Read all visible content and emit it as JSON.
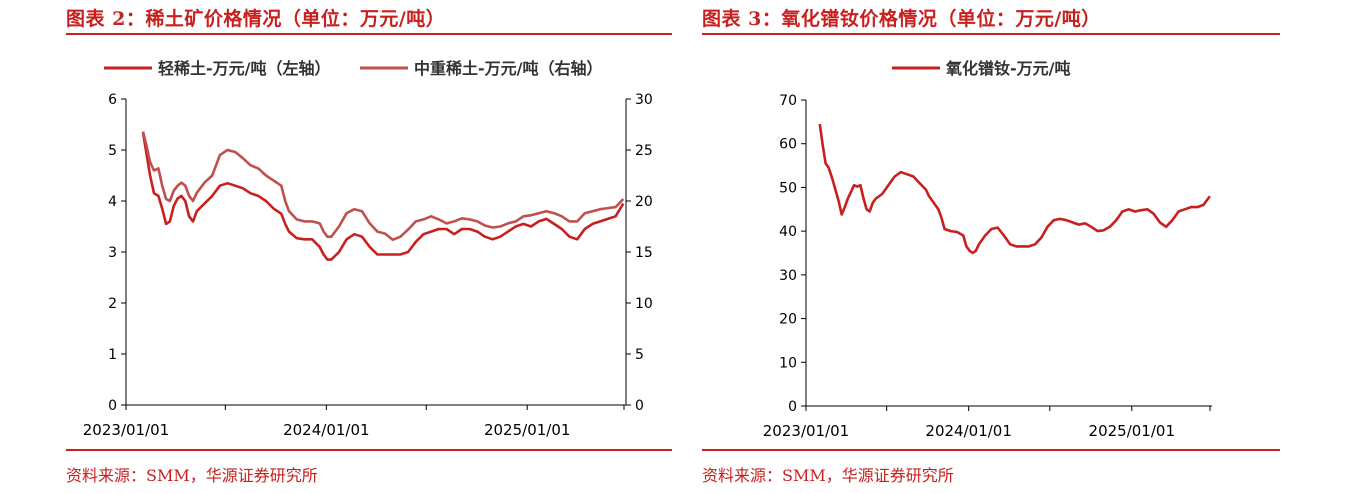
{
  "colors": {
    "accent": "#c8201e",
    "series_light": "#c8201e",
    "series_heavy": "#c0504d"
  },
  "left_panel": {
    "title": "图表 2：稀土矿价格情况（单位：万元/吨）",
    "source": "资料来源：SMM，华源证券研究所"
  },
  "right_panel": {
    "title": "图表 3：氧化镨钕价格情况（单位：万元/吨）",
    "source": "资料来源：SMM，华源证券研究所"
  },
  "chart_data": [
    {
      "type": "line",
      "title": "",
      "legend_position": "top",
      "x_ticks": [
        "2023/01/01",
        "2024/01/01",
        "2025/01/01"
      ],
      "x_range": [
        "2023/01/01",
        "2025/06/30"
      ],
      "y_left_range": [
        0,
        6
      ],
      "y_left_ticks": [
        "0",
        "1",
        "2",
        "3",
        "4",
        "5",
        "6"
      ],
      "y_right_range": [
        0,
        30
      ],
      "y_right_ticks": [
        "0",
        "5",
        "10",
        "15",
        "20",
        "25",
        "30"
      ],
      "grid": false,
      "series": [
        {
          "name": "轻稀土-万元/吨（左轴）",
          "axis": "left",
          "color": "#c8201e",
          "points": [
            [
              "2023-02-01",
              5.35
            ],
            [
              "2023-02-07",
              4.95
            ],
            [
              "2023-02-14",
              4.5
            ],
            [
              "2023-02-21",
              4.15
            ],
            [
              "2023-03-01",
              4.1
            ],
            [
              "2023-03-08",
              3.85
            ],
            [
              "2023-03-15",
              3.55
            ],
            [
              "2023-03-22",
              3.6
            ],
            [
              "2023-03-29",
              3.9
            ],
            [
              "2023-04-05",
              4.05
            ],
            [
              "2023-04-12",
              4.1
            ],
            [
              "2023-04-19",
              4.0
            ],
            [
              "2023-04-26",
              3.7
            ],
            [
              "2023-05-03",
              3.6
            ],
            [
              "2023-05-10",
              3.8
            ],
            [
              "2023-05-24",
              3.95
            ],
            [
              "2023-06-07",
              4.1
            ],
            [
              "2023-06-21",
              4.3
            ],
            [
              "2023-07-05",
              4.35
            ],
            [
              "2023-07-19",
              4.3
            ],
            [
              "2023-08-02",
              4.25
            ],
            [
              "2023-08-16",
              4.15
            ],
            [
              "2023-08-30",
              4.1
            ],
            [
              "2023-09-13",
              4.0
            ],
            [
              "2023-09-27",
              3.85
            ],
            [
              "2023-10-11",
              3.75
            ],
            [
              "2023-10-18",
              3.55
            ],
            [
              "2023-10-25",
              3.4
            ],
            [
              "2023-11-08",
              3.27
            ],
            [
              "2023-11-22",
              3.25
            ],
            [
              "2023-12-06",
              3.25
            ],
            [
              "2023-12-20",
              3.1
            ],
            [
              "2023-12-27",
              2.95
            ],
            [
              "2024-01-03",
              2.85
            ],
            [
              "2024-01-10",
              2.85
            ],
            [
              "2024-01-24",
              3.0
            ],
            [
              "2024-02-07",
              3.25
            ],
            [
              "2024-02-21",
              3.35
            ],
            [
              "2024-03-06",
              3.3
            ],
            [
              "2024-03-20",
              3.1
            ],
            [
              "2024-04-03",
              2.95
            ],
            [
              "2024-04-17",
              2.95
            ],
            [
              "2024-05-01",
              2.95
            ],
            [
              "2024-05-15",
              2.95
            ],
            [
              "2024-05-29",
              3.0
            ],
            [
              "2024-06-12",
              3.2
            ],
            [
              "2024-06-26",
              3.35
            ],
            [
              "2024-07-10",
              3.4
            ],
            [
              "2024-07-24",
              3.45
            ],
            [
              "2024-08-07",
              3.45
            ],
            [
              "2024-08-21",
              3.35
            ],
            [
              "2024-09-04",
              3.45
            ],
            [
              "2024-09-18",
              3.45
            ],
            [
              "2024-10-02",
              3.4
            ],
            [
              "2024-10-16",
              3.3
            ],
            [
              "2024-10-30",
              3.25
            ],
            [
              "2024-11-13",
              3.3
            ],
            [
              "2024-11-27",
              3.4
            ],
            [
              "2024-12-11",
              3.5
            ],
            [
              "2024-12-25",
              3.55
            ],
            [
              "2025-01-08",
              3.5
            ],
            [
              "2025-01-22",
              3.6
            ],
            [
              "2025-02-05",
              3.65
            ],
            [
              "2025-02-19",
              3.55
            ],
            [
              "2025-03-05",
              3.45
            ],
            [
              "2025-03-19",
              3.3
            ],
            [
              "2025-04-02",
              3.25
            ],
            [
              "2025-04-16",
              3.45
            ],
            [
              "2025-04-30",
              3.55
            ],
            [
              "2025-05-14",
              3.6
            ],
            [
              "2025-05-28",
              3.65
            ],
            [
              "2025-06-11",
              3.7
            ],
            [
              "2025-06-25",
              3.95
            ]
          ]
        },
        {
          "name": "中重稀土-万元/吨（右轴）",
          "axis": "right",
          "color": "#c0504d",
          "points": [
            [
              "2023-02-01",
              26.8
            ],
            [
              "2023-02-07",
              25.5
            ],
            [
              "2023-02-14",
              23.8
            ],
            [
              "2023-02-21",
              23.0
            ],
            [
              "2023-03-01",
              23.2
            ],
            [
              "2023-03-08",
              21.5
            ],
            [
              "2023-03-15",
              20.2
            ],
            [
              "2023-03-22",
              20.0
            ],
            [
              "2023-03-29",
              21.0
            ],
            [
              "2023-04-05",
              21.5
            ],
            [
              "2023-04-12",
              21.8
            ],
            [
              "2023-04-19",
              21.5
            ],
            [
              "2023-04-26",
              20.5
            ],
            [
              "2023-05-03",
              20.0
            ],
            [
              "2023-05-10",
              20.8
            ],
            [
              "2023-05-24",
              21.8
            ],
            [
              "2023-06-07",
              22.5
            ],
            [
              "2023-06-21",
              24.5
            ],
            [
              "2023-07-05",
              25.0
            ],
            [
              "2023-07-19",
              24.8
            ],
            [
              "2023-08-02",
              24.2
            ],
            [
              "2023-08-16",
              23.5
            ],
            [
              "2023-08-30",
              23.2
            ],
            [
              "2023-09-13",
              22.5
            ],
            [
              "2023-09-27",
              22.0
            ],
            [
              "2023-10-11",
              21.5
            ],
            [
              "2023-10-18",
              20.0
            ],
            [
              "2023-10-25",
              19.0
            ],
            [
              "2023-11-08",
              18.2
            ],
            [
              "2023-11-22",
              18.0
            ],
            [
              "2023-12-06",
              18.0
            ],
            [
              "2023-12-20",
              17.8
            ],
            [
              "2023-12-27",
              17.0
            ],
            [
              "2024-01-03",
              16.5
            ],
            [
              "2024-01-10",
              16.5
            ],
            [
              "2024-01-24",
              17.5
            ],
            [
              "2024-02-07",
              18.8
            ],
            [
              "2024-02-21",
              19.2
            ],
            [
              "2024-03-06",
              19.0
            ],
            [
              "2024-03-20",
              17.8
            ],
            [
              "2024-04-03",
              17.0
            ],
            [
              "2024-04-17",
              16.8
            ],
            [
              "2024-05-01",
              16.2
            ],
            [
              "2024-05-15",
              16.5
            ],
            [
              "2024-05-29",
              17.2
            ],
            [
              "2024-06-12",
              18.0
            ],
            [
              "2024-06-26",
              18.2
            ],
            [
              "2024-07-10",
              18.5
            ],
            [
              "2024-07-24",
              18.2
            ],
            [
              "2024-08-07",
              17.8
            ],
            [
              "2024-08-21",
              18.0
            ],
            [
              "2024-09-04",
              18.3
            ],
            [
              "2024-09-18",
              18.2
            ],
            [
              "2024-10-02",
              18.0
            ],
            [
              "2024-10-16",
              17.6
            ],
            [
              "2024-10-30",
              17.4
            ],
            [
              "2024-11-13",
              17.5
            ],
            [
              "2024-11-27",
              17.8
            ],
            [
              "2024-12-11",
              18.0
            ],
            [
              "2024-12-25",
              18.5
            ],
            [
              "2025-01-08",
              18.6
            ],
            [
              "2025-01-22",
              18.8
            ],
            [
              "2025-02-05",
              19.0
            ],
            [
              "2025-02-19",
              18.8
            ],
            [
              "2025-03-05",
              18.5
            ],
            [
              "2025-03-19",
              18.0
            ],
            [
              "2025-04-02",
              18.0
            ],
            [
              "2025-04-16",
              18.8
            ],
            [
              "2025-04-30",
              19.0
            ],
            [
              "2025-05-14",
              19.2
            ],
            [
              "2025-05-28",
              19.3
            ],
            [
              "2025-06-11",
              19.4
            ],
            [
              "2025-06-25",
              20.2
            ]
          ]
        }
      ]
    },
    {
      "type": "line",
      "title": "",
      "legend_position": "top",
      "x_ticks": [
        "2023/01/01",
        "2024/01/01",
        "2025/01/01"
      ],
      "x_range": [
        "2023/01/01",
        "2025/06/30"
      ],
      "y_range": [
        0,
        70
      ],
      "y_ticks": [
        "0",
        "10",
        "20",
        "30",
        "40",
        "50",
        "60",
        "70"
      ],
      "grid": false,
      "series": [
        {
          "name": "氧化镨钕-万元/吨",
          "color": "#c8201e",
          "points": [
            [
              "2023-02-01",
              64.5
            ],
            [
              "2023-02-07",
              60.0
            ],
            [
              "2023-02-14",
              55.5
            ],
            [
              "2023-02-21",
              54.5
            ],
            [
              "2023-03-01",
              52.0
            ],
            [
              "2023-03-08",
              49.5
            ],
            [
              "2023-03-15",
              47.0
            ],
            [
              "2023-03-22",
              43.8
            ],
            [
              "2023-03-29",
              45.5
            ],
            [
              "2023-04-05",
              47.5
            ],
            [
              "2023-04-12",
              49.0
            ],
            [
              "2023-04-19",
              50.5
            ],
            [
              "2023-04-26",
              50.2
            ],
            [
              "2023-05-03",
              50.5
            ],
            [
              "2023-05-10",
              47.5
            ],
            [
              "2023-05-17",
              45.0
            ],
            [
              "2023-05-24",
              44.5
            ],
            [
              "2023-05-31",
              46.5
            ],
            [
              "2023-06-07",
              47.5
            ],
            [
              "2023-06-21",
              48.5
            ],
            [
              "2023-07-05",
              50.5
            ],
            [
              "2023-07-19",
              52.5
            ],
            [
              "2023-08-02",
              53.5
            ],
            [
              "2023-08-16",
              53.0
            ],
            [
              "2023-08-30",
              52.5
            ],
            [
              "2023-09-13",
              51.0
            ],
            [
              "2023-09-27",
              49.5
            ],
            [
              "2023-10-04",
              48.0
            ],
            [
              "2023-10-11",
              47.0
            ],
            [
              "2023-10-18",
              46.0
            ],
            [
              "2023-10-25",
              45.0
            ],
            [
              "2023-11-01",
              43.0
            ],
            [
              "2023-11-08",
              40.5
            ],
            [
              "2023-11-22",
              40.0
            ],
            [
              "2023-12-06",
              39.8
            ],
            [
              "2023-12-20",
              39.0
            ],
            [
              "2023-12-27",
              36.5
            ],
            [
              "2024-01-03",
              35.5
            ],
            [
              "2024-01-10",
              35.0
            ],
            [
              "2024-01-17",
              35.5
            ],
            [
              "2024-01-24",
              37.0
            ],
            [
              "2024-02-07",
              39.0
            ],
            [
              "2024-02-21",
              40.5
            ],
            [
              "2024-03-06",
              40.8
            ],
            [
              "2024-03-20",
              39.0
            ],
            [
              "2024-04-03",
              37.0
            ],
            [
              "2024-04-17",
              36.5
            ],
            [
              "2024-05-01",
              36.5
            ],
            [
              "2024-05-15",
              36.5
            ],
            [
              "2024-05-29",
              37.0
            ],
            [
              "2024-06-12",
              38.5
            ],
            [
              "2024-06-26",
              41.0
            ],
            [
              "2024-07-10",
              42.5
            ],
            [
              "2024-07-24",
              42.8
            ],
            [
              "2024-08-07",
              42.5
            ],
            [
              "2024-08-21",
              42.0
            ],
            [
              "2024-09-04",
              41.5
            ],
            [
              "2024-09-18",
              41.8
            ],
            [
              "2024-10-02",
              41.0
            ],
            [
              "2024-10-16",
              40.0
            ],
            [
              "2024-10-30",
              40.2
            ],
            [
              "2024-11-13",
              41.0
            ],
            [
              "2024-11-27",
              42.5
            ],
            [
              "2024-12-11",
              44.5
            ],
            [
              "2024-12-25",
              45.0
            ],
            [
              "2025-01-08",
              44.5
            ],
            [
              "2025-01-22",
              44.8
            ],
            [
              "2025-02-05",
              45.0
            ],
            [
              "2025-02-19",
              44.0
            ],
            [
              "2025-03-05",
              42.0
            ],
            [
              "2025-03-19",
              41.0
            ],
            [
              "2025-04-02",
              42.5
            ],
            [
              "2025-04-16",
              44.5
            ],
            [
              "2025-04-30",
              45.0
            ],
            [
              "2025-05-14",
              45.5
            ],
            [
              "2025-05-28",
              45.5
            ],
            [
              "2025-06-11",
              46.0
            ],
            [
              "2025-06-25",
              48.0
            ]
          ]
        }
      ]
    }
  ]
}
